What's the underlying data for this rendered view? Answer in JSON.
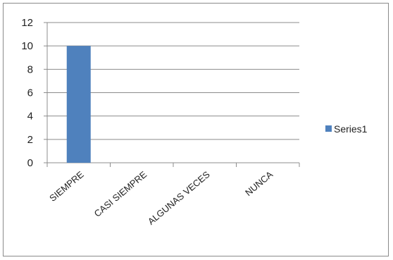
{
  "chart_data": {
    "type": "bar",
    "categories": [
      "SIEMPRE",
      "CASI SIEMPRE",
      "ALGUNAS VECES",
      "NUNCA"
    ],
    "series": [
      {
        "name": "Series1",
        "values": [
          10,
          0,
          0,
          0
        ],
        "color": "#4f81bd"
      }
    ],
    "ylim": [
      0,
      12
    ],
    "yticks": [
      0,
      2,
      4,
      6,
      8,
      10,
      12
    ],
    "grid": true,
    "legend_position": "right"
  }
}
